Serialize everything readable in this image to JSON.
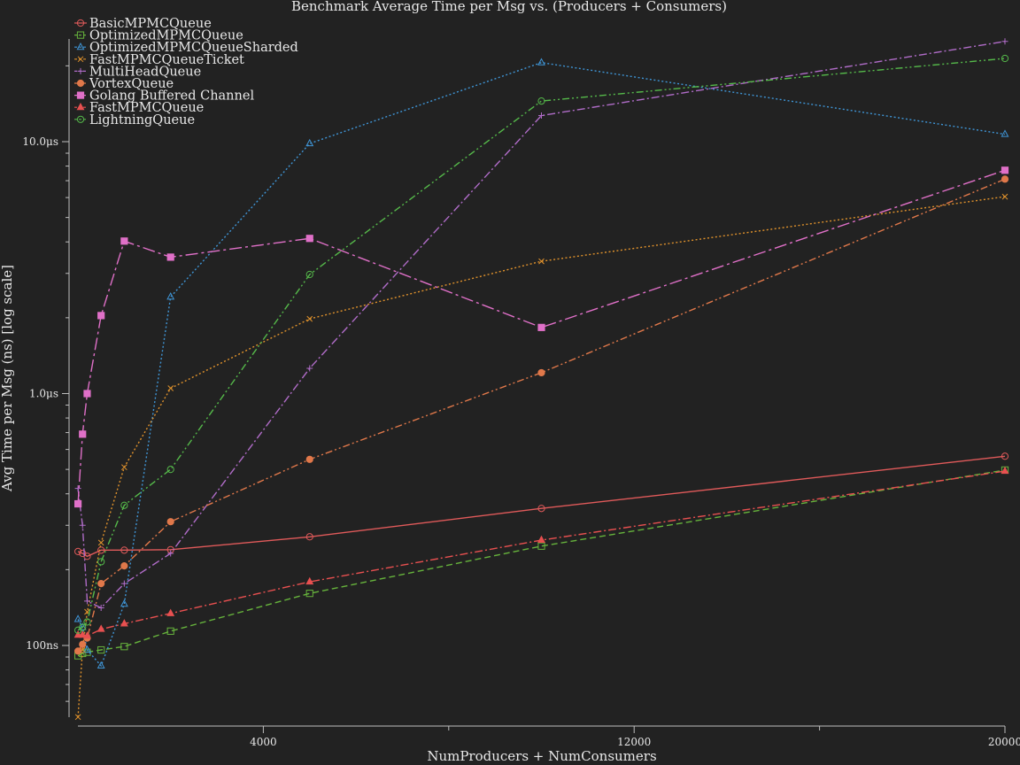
{
  "chart_data": {
    "type": "line",
    "title": "Benchmark Average Time per Msg vs. (Producers + Consumers)",
    "xlabel": "NumProducers + NumConsumers",
    "ylabel": "Avg Time per Msg (ns) [log scale]",
    "y_scale": "log",
    "xlim": [
      0,
      20000
    ],
    "ylim": [
      52,
      265000
    ],
    "x_ticks": [
      {
        "value": 4000,
        "label": "4000"
      },
      {
        "value": 12000,
        "label": "12000"
      },
      {
        "value": 20000,
        "label": "20000"
      }
    ],
    "x_minor_ticks": [
      8000,
      16000
    ],
    "y_ticks": [
      {
        "value": 100,
        "label": "100ns"
      },
      {
        "value": 1000,
        "label": "1.0μs"
      },
      {
        "value": 10000,
        "label": "10.0μs"
      }
    ],
    "grid": false,
    "legend_position": "top-left",
    "series": [
      {
        "name": "BasicMPMCQueue",
        "color": "#e05a5a",
        "marker": "circle-open",
        "dash": "solid",
        "x": [
          2,
          100,
          200,
          500,
          1000,
          2000,
          5000,
          10000,
          20000
        ],
        "y": [
          236,
          232,
          226,
          239,
          239,
          240,
          270,
          350,
          564
        ]
      },
      {
        "name": "OptimizedMPMCQueue",
        "color": "#66b33c",
        "marker": "square-open",
        "dash": "dashed",
        "x": [
          2,
          100,
          200,
          500,
          1000,
          2000,
          5000,
          10000,
          20000
        ],
        "y": [
          91,
          93,
          94,
          96,
          99,
          114,
          161,
          248,
          497
        ]
      },
      {
        "name": "OptimizedMPMCQueueSharded",
        "color": "#3f95d6",
        "marker": "triangle-open",
        "dash": "dotted",
        "x": [
          2,
          100,
          200,
          500,
          1000,
          2000,
          5000,
          10000,
          20000
        ],
        "y": [
          127,
          118,
          96,
          83,
          146,
          2420,
          9830,
          20600,
          10700
        ]
      },
      {
        "name": "FastMPMCQueueTicket",
        "color": "#e0922c",
        "marker": "x",
        "dash": "dotted",
        "x": [
          2,
          100,
          200,
          500,
          1000,
          2000,
          5000,
          10000,
          20000
        ],
        "y": [
          52,
          96,
          136,
          256,
          510,
          1050,
          1980,
          3350,
          6050
        ]
      },
      {
        "name": "MultiHeadQueue",
        "color": "#b06cc8",
        "marker": "plus",
        "dash": "dashdot",
        "x": [
          2,
          100,
          200,
          500,
          1000,
          2000,
          5000,
          10000,
          20000
        ],
        "y": [
          420,
          300,
          150,
          141,
          176,
          232,
          1260,
          12700,
          25000
        ]
      },
      {
        "name": "VortexQueue",
        "color": "#e0784a",
        "marker": "circle-filled",
        "dash": "dashdotdot",
        "x": [
          2,
          100,
          200,
          500,
          1000,
          2000,
          5000,
          10000,
          20000
        ],
        "y": [
          95,
          101,
          107,
          176,
          207,
          310,
          548,
          1210,
          7100
        ]
      },
      {
        "name": "Golang Buffered Channel",
        "color": "#e070c8",
        "marker": "square-filled",
        "dash": "longdashdot",
        "x": [
          2,
          100,
          200,
          500,
          1000,
          2000,
          5000,
          10000,
          20000
        ],
        "y": [
          365,
          690,
          1000,
          2040,
          4030,
          3480,
          4130,
          1830,
          7700
        ]
      },
      {
        "name": "FastMPMCQueue",
        "color": "#e85050",
        "marker": "triangle-filled",
        "dash": "dashdot",
        "x": [
          2,
          100,
          200,
          500,
          1000,
          2000,
          5000,
          10000,
          20000
        ],
        "y": [
          110,
          110,
          109,
          116,
          122,
          134,
          179,
          262,
          492
        ]
      },
      {
        "name": "LightningQueue",
        "color": "#55b94a",
        "marker": "circle-open",
        "dash": "dashdotdot",
        "x": [
          2,
          100,
          200,
          500,
          1000,
          2000,
          5000,
          10000,
          20000
        ],
        "y": [
          115,
          118,
          124,
          215,
          360,
          500,
          2970,
          14500,
          21400
        ]
      }
    ]
  }
}
